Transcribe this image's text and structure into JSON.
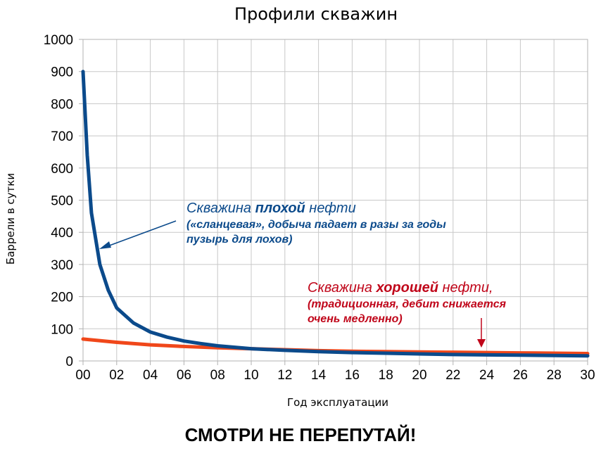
{
  "chart_data": {
    "type": "line",
    "title": "Профили скважин",
    "xlabel": "Год эксплуатации",
    "ylabel": "Баррели в сутки",
    "xlim": [
      0,
      30
    ],
    "ylim": [
      0,
      1000
    ],
    "x_ticks": [
      "00",
      "02",
      "04",
      "06",
      "08",
      "10",
      "12",
      "14",
      "16",
      "18",
      "20",
      "22",
      "24",
      "26",
      "28",
      "30"
    ],
    "y_ticks": [
      "0",
      "100",
      "200",
      "300",
      "400",
      "500",
      "600",
      "700",
      "800",
      "900",
      "1000"
    ],
    "grid": true,
    "series": [
      {
        "color": "#0b4a8b",
        "x": [
          0,
          0.25,
          0.5,
          0.75,
          1,
          1.5,
          2,
          3,
          4,
          5,
          6,
          7,
          8,
          10,
          12,
          14,
          16,
          18,
          20,
          22,
          24,
          26,
          28,
          30
        ],
        "values": [
          900,
          640,
          460,
          380,
          300,
          220,
          165,
          118,
          90,
          74,
          62,
          54,
          47,
          38,
          33,
          29,
          26,
          24,
          22,
          20,
          19,
          18,
          17,
          16
        ]
      },
      {
        "color": "#f0471a",
        "x": [
          0,
          2,
          4,
          6,
          8,
          10,
          12,
          14,
          16,
          18,
          20,
          22,
          24,
          26,
          28,
          30
        ],
        "values": [
          68,
          58,
          50,
          45,
          41,
          38,
          35,
          32,
          30,
          29,
          28,
          27,
          26,
          25,
          24,
          23
        ]
      }
    ]
  },
  "annotations": {
    "bad": {
      "line1_prefix": "Скважина ",
      "line1_bold": "плохой",
      "line1_suffix": " нефти",
      "line2": "(«сланцевая», добыча падает в разы за годы",
      "line3": "пузырь для лохов)",
      "color": "#0b4a8b"
    },
    "good": {
      "line1_prefix": "Скважина ",
      "line1_bold": "хорошей",
      "line1_suffix": " нефти,",
      "line2": "(традиционная, дебит снижается",
      "line3": "очень медленно)",
      "color": "#c0061a"
    }
  },
  "caption": "СМОТРИ НЕ ПЕРЕПУТАЙ!"
}
